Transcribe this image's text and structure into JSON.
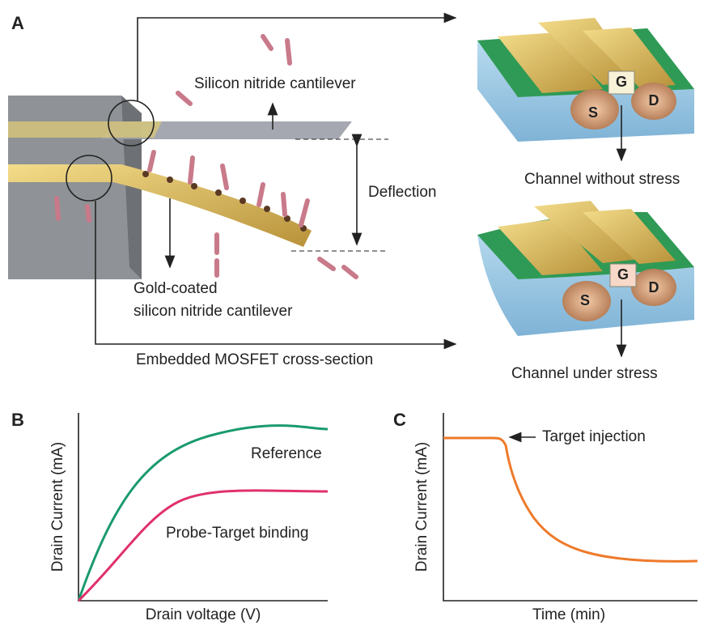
{
  "panel_a": {
    "label": "A",
    "cantilever_top": "Silicon nitride cantilever",
    "deflection": "Deflection",
    "cantilever_bottom": [
      "Gold-coated",
      "silicon nitride cantilever"
    ],
    "mosfet": "Embedded MOSFET cross-section",
    "mosfets": [
      {
        "caption": "Channel without stress",
        "gate": "G",
        "source": "S",
        "drain": "D"
      },
      {
        "caption": "Channel under stress",
        "gate": "G",
        "source": "S",
        "drain": "D"
      }
    ]
  },
  "panel_b": {
    "label": "B",
    "y_label": "Drain Current (mA)",
    "x_label": "Drain voltage (V)",
    "curves": [
      "Reference",
      "Probe-Target binding"
    ]
  },
  "panel_c": {
    "label": "C",
    "y_label": "Drain Current (mA)",
    "x_label": "Time (min)",
    "annotation": "Target injection"
  }
}
